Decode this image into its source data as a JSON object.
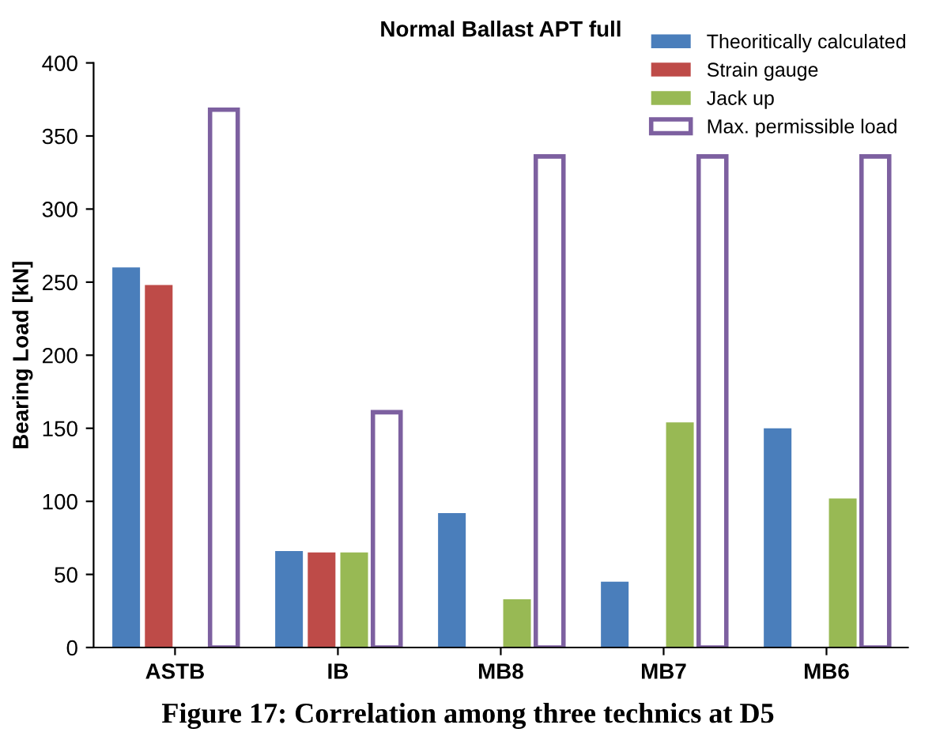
{
  "chart_data": {
    "type": "bar",
    "title": "Normal Ballast APT full",
    "ylabel": "Bearing Load [kN]",
    "categories": [
      "ASTB",
      "IB",
      "MB8",
      "MB7",
      "MB6"
    ],
    "series": [
      {
        "name": "Theoritically calculated",
        "color": "#4a7ebb",
        "values": [
          260,
          66,
          92,
          45,
          150
        ]
      },
      {
        "name": "Strain gauge",
        "color": "#be4b48",
        "values": [
          248,
          65,
          null,
          null,
          null
        ]
      },
      {
        "name": "Jack up",
        "color": "#98b954",
        "values": [
          null,
          65,
          33,
          154,
          102
        ]
      },
      {
        "name": "Max. permissible load",
        "color": "#7d60a0",
        "values": [
          368,
          161,
          336,
          336,
          336
        ]
      }
    ],
    "ylim": [
      0,
      400
    ],
    "yticks": [
      0,
      50,
      100,
      150,
      200,
      250,
      300,
      350,
      400
    ],
    "grid": false,
    "legend": "top right",
    "annotations": [
      "Figure 17: Correlation among three technics at D5"
    ]
  }
}
